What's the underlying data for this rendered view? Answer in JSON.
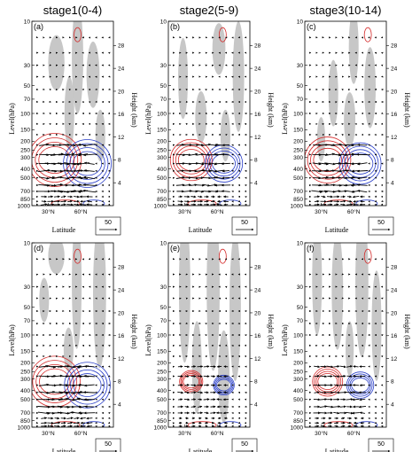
{
  "chart_data": [
    {
      "type": "vector-contour",
      "panel_label": "(a)",
      "title": "stage1(0-4)",
      "xlabel": "Latitude",
      "ylabel": "Level(hPa)",
      "y2label": "Height (km)",
      "x_ticks": [
        "30°N",
        "60°N"
      ],
      "y_ticks": [
        "10",
        "30",
        "50",
        "70",
        "100",
        "150",
        "200",
        "250",
        "300",
        "400",
        "500",
        "700",
        "850",
        "1000"
      ],
      "y2_ticks": [
        "28",
        "24",
        "20",
        "16",
        "12",
        "8",
        "4"
      ],
      "y_scale": "log (pressure, reversed)",
      "ref_vector": "50",
      "contours": "red = positive, blue = negative",
      "shading": "gray = significant"
    },
    {
      "type": "vector-contour",
      "panel_label": "(b)",
      "title": "stage2(5-9)",
      "xlabel": "Latitude",
      "ylabel": "Level(hPa)",
      "y2label": "Height (km)",
      "x_ticks": [
        "30°N",
        "60°N"
      ],
      "y_ticks": [
        "10",
        "30",
        "50",
        "70",
        "100",
        "150",
        "200",
        "250",
        "300",
        "400",
        "500",
        "700",
        "850",
        "1000"
      ],
      "y2_ticks": [
        "28",
        "24",
        "20",
        "16",
        "12",
        "8",
        "4"
      ],
      "y_scale": "log (pressure, reversed)",
      "ref_vector": "50",
      "contours": "red = positive, blue = negative",
      "shading": "gray = significant"
    },
    {
      "type": "vector-contour",
      "panel_label": "(c)",
      "title": "stage3(10-14)",
      "xlabel": "Latitude",
      "ylabel": "Level(hPa)",
      "y2label": "Height (km)",
      "x_ticks": [
        "30°N",
        "60°N"
      ],
      "y_ticks": [
        "10",
        "30",
        "50",
        "70",
        "100",
        "150",
        "200",
        "250",
        "300",
        "400",
        "500",
        "700",
        "850",
        "1000"
      ],
      "y2_ticks": [
        "28",
        "24",
        "20",
        "16",
        "12",
        "8",
        "4"
      ],
      "y_scale": "log (pressure, reversed)",
      "ref_vector": "50",
      "contours": "red = positive, blue = negative",
      "shading": "gray = significant"
    },
    {
      "type": "vector-contour",
      "panel_label": "(d)",
      "title": "",
      "xlabel": "Latitude",
      "ylabel": "Level(hPa)",
      "y2label": "Height (km)",
      "x_ticks": [
        "30°N",
        "60°N"
      ],
      "y_ticks": [
        "10",
        "30",
        "50",
        "70",
        "100",
        "150",
        "200",
        "250",
        "300",
        "400",
        "500",
        "700",
        "850",
        "1000"
      ],
      "y2_ticks": [
        "28",
        "24",
        "20",
        "16",
        "12",
        "8",
        "4"
      ],
      "y_scale": "log (pressure, reversed)",
      "ref_vector": "50",
      "contours": "red = positive, blue = negative",
      "shading": "gray = significant"
    },
    {
      "type": "vector-contour",
      "panel_label": "(e)",
      "title": "",
      "xlabel": "Latitude",
      "ylabel": "Level(hPa)",
      "y2label": "Height (km)",
      "x_ticks": [
        "30°N",
        "60°N"
      ],
      "y_ticks": [
        "10",
        "30",
        "50",
        "70",
        "100",
        "150",
        "200",
        "250",
        "300",
        "400",
        "500",
        "700",
        "850",
        "1000"
      ],
      "y2_ticks": [
        "28",
        "24",
        "20",
        "16",
        "12",
        "8",
        "4"
      ],
      "y_scale": "log (pressure, reversed)",
      "ref_vector": "50",
      "contours": "red = positive, blue = negative",
      "shading": "gray = significant"
    },
    {
      "type": "vector-contour",
      "panel_label": "(f)",
      "title": "",
      "xlabel": "Latitude",
      "ylabel": "Level(hPa)",
      "y2label": "Height (km)",
      "x_ticks": [
        "30°N",
        "60°N"
      ],
      "y_ticks": [
        "10",
        "30",
        "50",
        "70",
        "100",
        "150",
        "200",
        "250",
        "300",
        "400",
        "500",
        "700",
        "850",
        "1000"
      ],
      "y2_ticks": [
        "28",
        "24",
        "20",
        "16",
        "12",
        "8",
        "4"
      ],
      "y_scale": "log (pressure, reversed)",
      "ref_vector": "50",
      "contours": "red = positive, blue = negative",
      "shading": "gray = significant"
    }
  ],
  "colors": {
    "positive_contour": "#d42a2a",
    "negative_contour": "#2a3fc8",
    "shading": "#c4c4c4",
    "vector": "#000000"
  }
}
